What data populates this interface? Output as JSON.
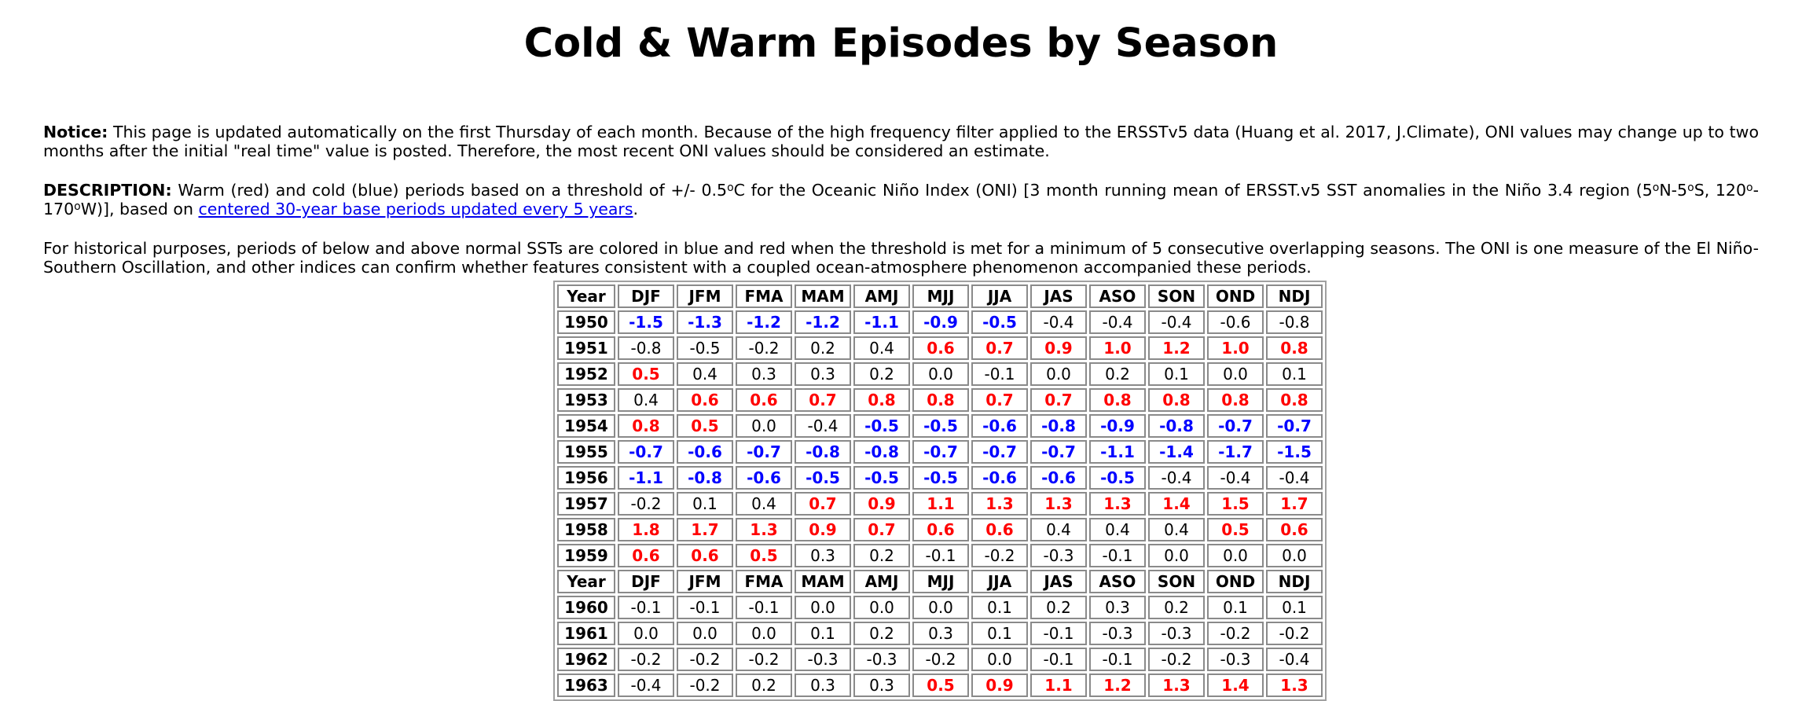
{
  "title": "Cold & Warm Episodes by Season",
  "notice": {
    "label": "Notice:",
    "text": " This page is updated automatically on the first Thursday of each month. Because of the high frequency filter applied to the ERSSTv5 data (Huang et al. 2017, J.Climate), ONI values may change up to two months after the initial \"real time\" value is posted. Therefore, the most recent ONI values should be considered an estimate."
  },
  "description": {
    "label": "DESCRIPTION:",
    "text_a": " Warm (red) and cold (blue) periods based on a threshold of +/- 0.5",
    "degree_1": "o",
    "text_b": "C for the Oceanic Niño Index (ONI) [3 month running mean of ERSST.v5 SST anomalies in the Niño 3.4 region (5",
    "degree_2": "o",
    "text_c": "N-5",
    "degree_3": "o",
    "text_d": "S, 120",
    "degree_4": "o",
    "text_e": "-170",
    "degree_5": "o",
    "text_f": "W)], based on ",
    "link_text": "centered 30-year base periods updated every 5 years",
    "text_g": "."
  },
  "historical_note": "For historical purposes, periods of below and above normal SSTs are colored in blue and red when the threshold is met for a minimum of 5 consecutive overlapping seasons. The ONI is one measure of the El Niño-Southern Oscillation, and other indices can confirm whether features consistent with a coupled ocean-atmosphere phenomenon accompanied these periods.",
  "colors": {
    "warm": "#ff0000",
    "cold": "#0000ff",
    "neutral": "#000000",
    "link": "#0000ee"
  },
  "table": {
    "year_header": "Year",
    "season_headers": [
      "DJF",
      "JFM",
      "FMA",
      "MAM",
      "AMJ",
      "MJJ",
      "JJA",
      "JAS",
      "ASO",
      "SON",
      "OND",
      "NDJ"
    ],
    "blocks": [
      {
        "rows": [
          {
            "year": "1950",
            "values": [
              "-1.5",
              "-1.3",
              "-1.2",
              "-1.2",
              "-1.1",
              "-0.9",
              "-0.5",
              "-0.4",
              "-0.4",
              "-0.4",
              "-0.6",
              "-0.8"
            ],
            "episode": [
              "cold",
              "cold",
              "cold",
              "cold",
              "cold",
              "cold",
              "cold",
              "",
              "",
              "",
              "",
              ""
            ]
          },
          {
            "year": "1951",
            "values": [
              "-0.8",
              "-0.5",
              "-0.2",
              "0.2",
              "0.4",
              "0.6",
              "0.7",
              "0.9",
              "1.0",
              "1.2",
              "1.0",
              "0.8"
            ],
            "episode": [
              "",
              "",
              "",
              "",
              "",
              "warm",
              "warm",
              "warm",
              "warm",
              "warm",
              "warm",
              "warm"
            ]
          },
          {
            "year": "1952",
            "values": [
              "0.5",
              "0.4",
              "0.3",
              "0.3",
              "0.2",
              "0.0",
              "-0.1",
              "0.0",
              "0.2",
              "0.1",
              "0.0",
              "0.1"
            ],
            "episode": [
              "warm",
              "",
              "",
              "",
              "",
              "",
              "",
              "",
              "",
              "",
              "",
              ""
            ]
          },
          {
            "year": "1953",
            "values": [
              "0.4",
              "0.6",
              "0.6",
              "0.7",
              "0.8",
              "0.8",
              "0.7",
              "0.7",
              "0.8",
              "0.8",
              "0.8",
              "0.8"
            ],
            "episode": [
              "",
              "warm",
              "warm",
              "warm",
              "warm",
              "warm",
              "warm",
              "warm",
              "warm",
              "warm",
              "warm",
              "warm"
            ]
          },
          {
            "year": "1954",
            "values": [
              "0.8",
              "0.5",
              "0.0",
              "-0.4",
              "-0.5",
              "-0.5",
              "-0.6",
              "-0.8",
              "-0.9",
              "-0.8",
              "-0.7",
              "-0.7"
            ],
            "episode": [
              "warm",
              "warm",
              "",
              "",
              "cold",
              "cold",
              "cold",
              "cold",
              "cold",
              "cold",
              "cold",
              "cold"
            ]
          },
          {
            "year": "1955",
            "values": [
              "-0.7",
              "-0.6",
              "-0.7",
              "-0.8",
              "-0.8",
              "-0.7",
              "-0.7",
              "-0.7",
              "-1.1",
              "-1.4",
              "-1.7",
              "-1.5"
            ],
            "episode": [
              "cold",
              "cold",
              "cold",
              "cold",
              "cold",
              "cold",
              "cold",
              "cold",
              "cold",
              "cold",
              "cold",
              "cold"
            ]
          },
          {
            "year": "1956",
            "values": [
              "-1.1",
              "-0.8",
              "-0.6",
              "-0.5",
              "-0.5",
              "-0.5",
              "-0.6",
              "-0.6",
              "-0.5",
              "-0.4",
              "-0.4",
              "-0.4"
            ],
            "episode": [
              "cold",
              "cold",
              "cold",
              "cold",
              "cold",
              "cold",
              "cold",
              "cold",
              "cold",
              "",
              "",
              ""
            ]
          },
          {
            "year": "1957",
            "values": [
              "-0.2",
              "0.1",
              "0.4",
              "0.7",
              "0.9",
              "1.1",
              "1.3",
              "1.3",
              "1.3",
              "1.4",
              "1.5",
              "1.7"
            ],
            "episode": [
              "",
              "",
              "",
              "warm",
              "warm",
              "warm",
              "warm",
              "warm",
              "warm",
              "warm",
              "warm",
              "warm"
            ]
          },
          {
            "year": "1958",
            "values": [
              "1.8",
              "1.7",
              "1.3",
              "0.9",
              "0.7",
              "0.6",
              "0.6",
              "0.4",
              "0.4",
              "0.4",
              "0.5",
              "0.6"
            ],
            "episode": [
              "warm",
              "warm",
              "warm",
              "warm",
              "warm",
              "warm",
              "warm",
              "",
              "",
              "",
              "warm",
              "warm"
            ]
          },
          {
            "year": "1959",
            "values": [
              "0.6",
              "0.6",
              "0.5",
              "0.3",
              "0.2",
              "-0.1",
              "-0.2",
              "-0.3",
              "-0.1",
              "0.0",
              "0.0",
              "0.0"
            ],
            "episode": [
              "warm",
              "warm",
              "warm",
              "",
              "",
              "",
              "",
              "",
              "",
              "",
              "",
              ""
            ]
          }
        ]
      },
      {
        "rows": [
          {
            "year": "1960",
            "values": [
              "-0.1",
              "-0.1",
              "-0.1",
              "0.0",
              "0.0",
              "0.0",
              "0.1",
              "0.2",
              "0.3",
              "0.2",
              "0.1",
              "0.1"
            ],
            "episode": [
              "",
              "",
              "",
              "",
              "",
              "",
              "",
              "",
              "",
              "",
              "",
              ""
            ]
          },
          {
            "year": "1961",
            "values": [
              "0.0",
              "0.0",
              "0.0",
              "0.1",
              "0.2",
              "0.3",
              "0.1",
              "-0.1",
              "-0.3",
              "-0.3",
              "-0.2",
              "-0.2"
            ],
            "episode": [
              "",
              "",
              "",
              "",
              "",
              "",
              "",
              "",
              "",
              "",
              "",
              ""
            ]
          },
          {
            "year": "1962",
            "values": [
              "-0.2",
              "-0.2",
              "-0.2",
              "-0.3",
              "-0.3",
              "-0.2",
              "0.0",
              "-0.1",
              "-0.1",
              "-0.2",
              "-0.3",
              "-0.4"
            ],
            "episode": [
              "",
              "",
              "",
              "",
              "",
              "",
              "",
              "",
              "",
              "",
              "",
              ""
            ]
          },
          {
            "year": "1963",
            "values": [
              "-0.4",
              "-0.2",
              "0.2",
              "0.3",
              "0.3",
              "0.5",
              "0.9",
              "1.1",
              "1.2",
              "1.3",
              "1.4",
              "1.3"
            ],
            "episode": [
              "",
              "",
              "",
              "",
              "",
              "warm",
              "warm",
              "warm",
              "warm",
              "warm",
              "warm",
              "warm"
            ]
          }
        ]
      }
    ]
  }
}
